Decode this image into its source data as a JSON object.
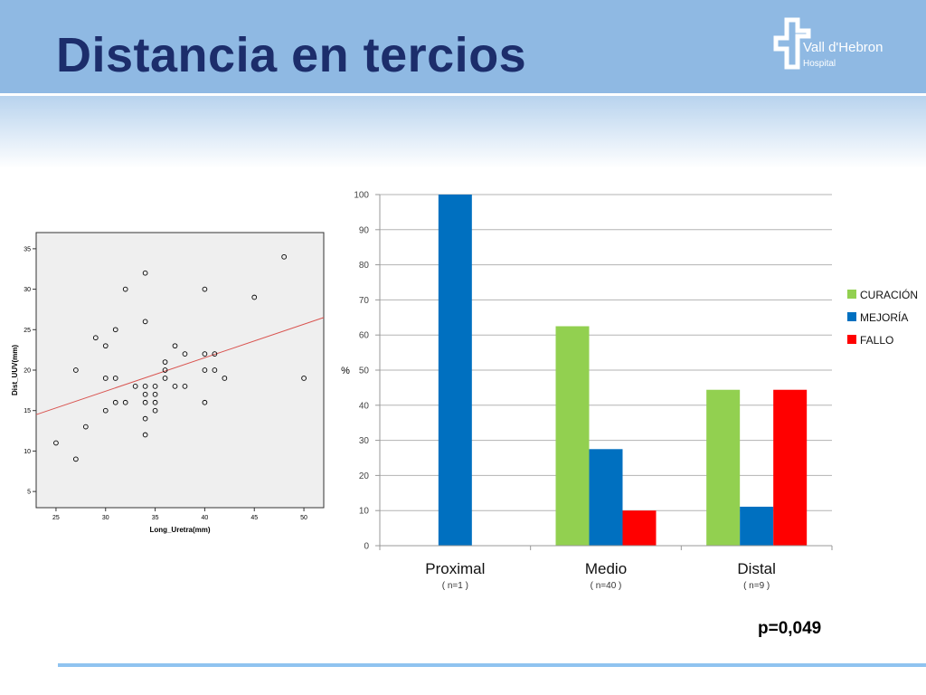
{
  "slide": {
    "title": "Distancia en tercios",
    "logo_name": "Vall d'Hebron",
    "logo_sub": "Hospital",
    "p_value": "p=0,049",
    "header_color": "#8fb9e3",
    "title_color": "#1c2d6b"
  },
  "chart_data": [
    {
      "type": "scatter",
      "xlabel": "Long_Uretra(mm)",
      "ylabel": "Dist_UUV(mm)",
      "xlim": [
        23,
        52
      ],
      "ylim": [
        3,
        37
      ],
      "xticks": [
        25,
        30,
        35,
        40,
        45,
        50
      ],
      "yticks": [
        5,
        10,
        15,
        20,
        25,
        30,
        35
      ],
      "grid": false,
      "plot_background": "#efefef",
      "points": [
        {
          "x": 25,
          "y": 11
        },
        {
          "x": 27,
          "y": 9
        },
        {
          "x": 27,
          "y": 20
        },
        {
          "x": 28,
          "y": 13
        },
        {
          "x": 29,
          "y": 24
        },
        {
          "x": 30,
          "y": 23
        },
        {
          "x": 30,
          "y": 19
        },
        {
          "x": 30,
          "y": 15
        },
        {
          "x": 31,
          "y": 25
        },
        {
          "x": 31,
          "y": 19
        },
        {
          "x": 31,
          "y": 16
        },
        {
          "x": 32,
          "y": 30
        },
        {
          "x": 32,
          "y": 16
        },
        {
          "x": 33,
          "y": 18
        },
        {
          "x": 34,
          "y": 32
        },
        {
          "x": 34,
          "y": 26
        },
        {
          "x": 34,
          "y": 18
        },
        {
          "x": 34,
          "y": 17
        },
        {
          "x": 34,
          "y": 16
        },
        {
          "x": 34,
          "y": 14
        },
        {
          "x": 34,
          "y": 12
        },
        {
          "x": 35,
          "y": 18
        },
        {
          "x": 35,
          "y": 17
        },
        {
          "x": 35,
          "y": 16
        },
        {
          "x": 35,
          "y": 15
        },
        {
          "x": 36,
          "y": 21
        },
        {
          "x": 36,
          "y": 20
        },
        {
          "x": 36,
          "y": 19
        },
        {
          "x": 37,
          "y": 23
        },
        {
          "x": 37,
          "y": 18
        },
        {
          "x": 38,
          "y": 22
        },
        {
          "x": 38,
          "y": 18
        },
        {
          "x": 40,
          "y": 30
        },
        {
          "x": 40,
          "y": 22
        },
        {
          "x": 40,
          "y": 20
        },
        {
          "x": 40,
          "y": 16
        },
        {
          "x": 41,
          "y": 22
        },
        {
          "x": 41,
          "y": 20
        },
        {
          "x": 42,
          "y": 19
        },
        {
          "x": 45,
          "y": 29
        },
        {
          "x": 48,
          "y": 34
        },
        {
          "x": 50,
          "y": 19
        }
      ],
      "fit_line": {
        "x": [
          23,
          52
        ],
        "y": [
          14.5,
          26.5
        ],
        "color": "#d9534f"
      }
    },
    {
      "type": "bar",
      "categories": [
        "Proximal",
        "Medio",
        "Distal"
      ],
      "category_notes": [
        "( n=1 )",
        "( n=40 )",
        "( n=9 )"
      ],
      "ylabel": "%",
      "ylim": [
        0,
        100
      ],
      "yticks": [
        0,
        10,
        20,
        30,
        40,
        50,
        60,
        70,
        80,
        90,
        100
      ],
      "grid": true,
      "legend_position": "right",
      "series": [
        {
          "name": "CURACIÓN",
          "color": "#92d050",
          "values": [
            0,
            62.5,
            44.4
          ]
        },
        {
          "name": "MEJORÍA",
          "color": "#0070c0",
          "values": [
            100,
            27.5,
            11.1
          ]
        },
        {
          "name": "FALLO",
          "color": "#ff0000",
          "values": [
            0,
            10,
            44.4
          ]
        }
      ]
    }
  ]
}
